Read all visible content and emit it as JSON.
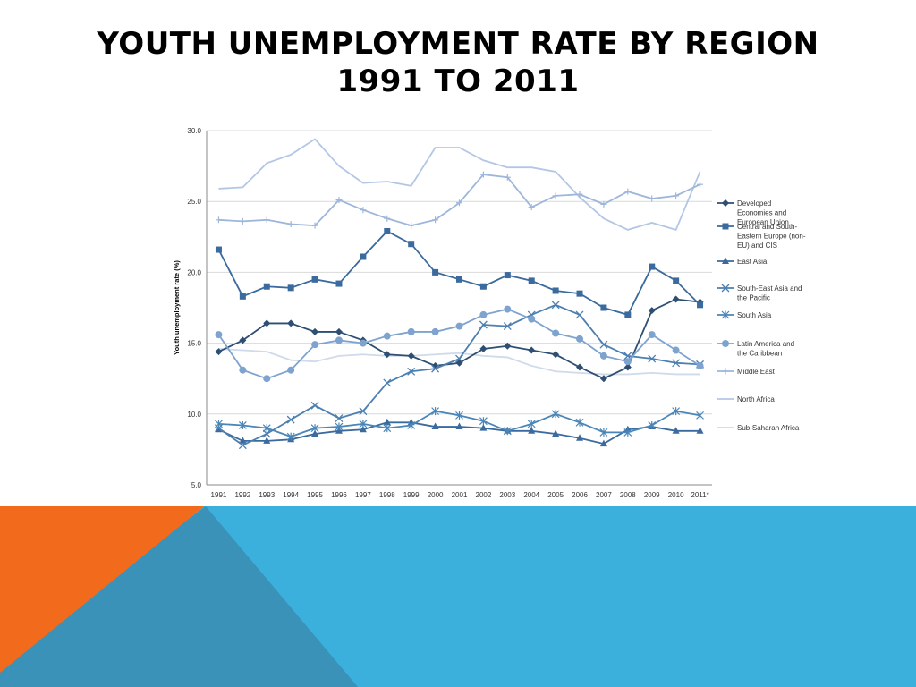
{
  "slide": {
    "title_line1": "YOUTH UNEMPLOYMENT RATE BY REGION",
    "title_line2": "1991 TO 2011"
  },
  "colors": {
    "footer_blue": "#3bb0dd",
    "footer_orange": "#f26b1d",
    "footer_teal": "#3a92b8"
  },
  "chart_data": {
    "type": "line",
    "title": "",
    "xlabel": "",
    "ylabel": "Youth unemployment rate (%)",
    "ylim": [
      5,
      30
    ],
    "yticks": [
      "5.0",
      "10.0",
      "15.0",
      "20.0",
      "25.0",
      "30.0"
    ],
    "grid": true,
    "legend_position": "right",
    "categories": [
      "1991",
      "1992",
      "1993",
      "1994",
      "1995",
      "1996",
      "1997",
      "1998",
      "1999",
      "2000",
      "2001",
      "2002",
      "2003",
      "2004",
      "2005",
      "2006",
      "2007",
      "2008",
      "2009",
      "2010",
      "2011*"
    ],
    "series": [
      {
        "name": "Developed Economies and European Union",
        "marker": "diamond",
        "color": "#2e4f73",
        "values": [
          14.4,
          15.2,
          16.4,
          16.4,
          15.8,
          15.8,
          15.2,
          14.2,
          14.1,
          13.4,
          13.6,
          14.6,
          14.8,
          14.5,
          14.2,
          13.3,
          12.5,
          13.3,
          17.3,
          18.1,
          17.9
        ]
      },
      {
        "name": "Central and South-Eastern Europe (non-EU) and CIS",
        "marker": "square",
        "color": "#3a6a9e",
        "values": [
          21.6,
          18.3,
          19.0,
          18.9,
          19.5,
          19.2,
          21.1,
          22.9,
          22.0,
          20.0,
          19.5,
          19.0,
          19.8,
          19.4,
          18.7,
          18.5,
          17.5,
          17.0,
          20.4,
          19.4,
          17.7
        ]
      },
      {
        "name": "East Asia",
        "marker": "triangle",
        "color": "#3a6a9e",
        "values": [
          8.9,
          8.1,
          8.1,
          8.2,
          8.6,
          8.8,
          8.9,
          9.4,
          9.4,
          9.1,
          9.1,
          9.0,
          8.8,
          8.8,
          8.6,
          8.3,
          7.9,
          8.9,
          9.1,
          8.8,
          8.8
        ]
      },
      {
        "name": "South-East Asia and the Pacific",
        "marker": "x",
        "color": "#4c7fb0",
        "values": [
          9.0,
          7.8,
          8.6,
          9.6,
          10.6,
          9.7,
          10.2,
          12.2,
          13.0,
          13.2,
          13.9,
          16.3,
          16.2,
          17.0,
          17.7,
          17.0,
          14.9,
          14.1,
          13.9,
          13.6,
          13.5
        ]
      },
      {
        "name": "South Asia",
        "marker": "asterisk",
        "color": "#4a86b8",
        "values": [
          9.3,
          9.2,
          9.0,
          8.4,
          9.0,
          9.1,
          9.3,
          9.0,
          9.2,
          10.2,
          9.9,
          9.5,
          8.8,
          9.3,
          10.0,
          9.4,
          8.7,
          8.7,
          9.2,
          10.2,
          9.9
        ]
      },
      {
        "name": "Latin America and the Caribbean",
        "marker": "circle",
        "color": "#7ea3cf",
        "values": [
          15.6,
          13.1,
          12.5,
          13.1,
          14.9,
          15.2,
          15.0,
          15.5,
          15.8,
          15.8,
          16.2,
          17.0,
          17.4,
          16.7,
          15.7,
          15.3,
          14.1,
          13.7,
          15.6,
          14.5,
          13.4
        ]
      },
      {
        "name": "Middle East",
        "marker": "plus",
        "color": "#9db6da",
        "values": [
          23.7,
          23.6,
          23.7,
          23.4,
          23.3,
          25.1,
          24.4,
          23.8,
          23.3,
          23.7,
          24.9,
          26.9,
          26.7,
          24.6,
          25.4,
          25.5,
          24.8,
          25.7,
          25.2,
          25.4,
          26.2
        ]
      },
      {
        "name": "North Africa",
        "marker": "none",
        "color": "#b3c7e5",
        "values": [
          25.9,
          26.0,
          27.7,
          28.3,
          29.4,
          27.5,
          26.3,
          26.4,
          26.1,
          28.8,
          28.8,
          27.9,
          27.4,
          27.4,
          27.1,
          25.3,
          23.8,
          23.0,
          23.5,
          23.0,
          27.1
        ]
      },
      {
        "name": "Sub-Saharan Africa",
        "marker": "none",
        "color": "#cfdaea",
        "values": [
          14.6,
          14.5,
          14.4,
          13.8,
          13.7,
          14.1,
          14.2,
          14.1,
          14.1,
          14.2,
          14.3,
          14.1,
          14.0,
          13.4,
          13.0,
          12.9,
          12.8,
          12.8,
          12.9,
          12.8,
          12.8
        ]
      }
    ],
    "legend_labels": [
      [
        "Developed",
        "Economies and",
        "European Union"
      ],
      [
        "Central and South-",
        "Eastern Europe (non-",
        "EU) and CIS"
      ],
      [
        "East Asia"
      ],
      [
        "South-East Asia and",
        "the Pacific"
      ],
      [
        "South Asia"
      ],
      [
        "Latin America and",
        "the Caribbean"
      ],
      [
        "Middle East"
      ],
      [
        "North Africa"
      ],
      [
        "Sub-Saharan Africa"
      ]
    ]
  }
}
